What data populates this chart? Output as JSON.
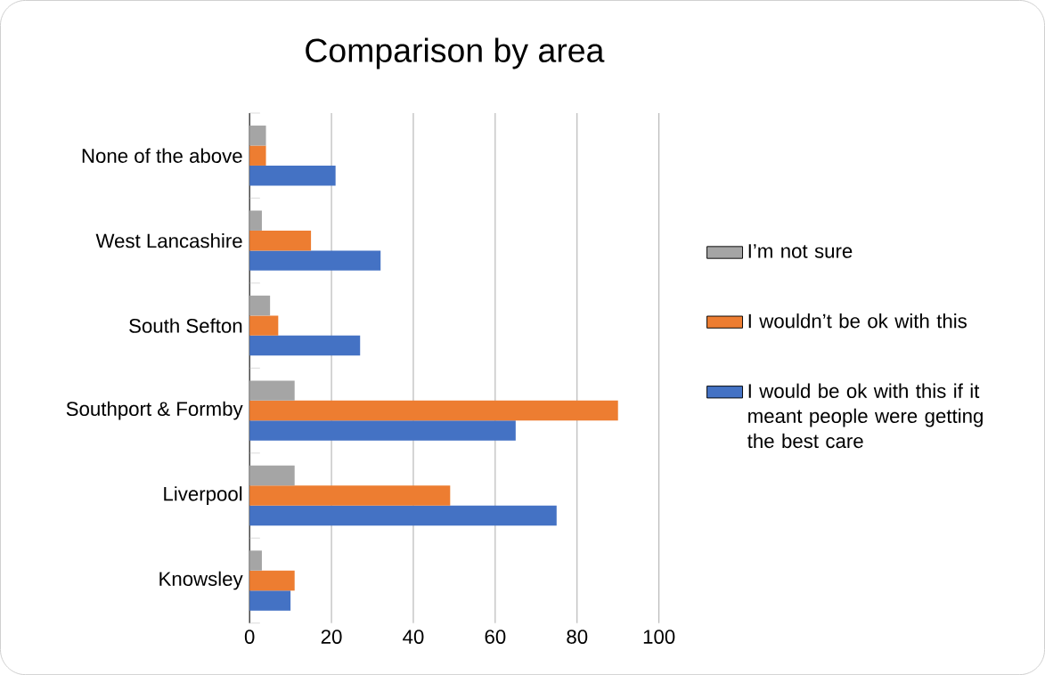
{
  "chart_data": {
    "type": "bar",
    "orientation": "horizontal",
    "title": "Comparison by area",
    "categories": [
      "None of the above",
      "West Lancashire",
      "South Sefton",
      "Southport & Formby",
      "Liverpool",
      "Knowsley"
    ],
    "series": [
      {
        "name": "I would be ok with this if it meant people were getting the best care",
        "color": "#4472c4",
        "values": [
          21,
          32,
          27,
          65,
          75,
          10
        ]
      },
      {
        "name": "I wouldn’t be ok with this",
        "color": "#ed7d31",
        "values": [
          4,
          15,
          7,
          90,
          49,
          11
        ]
      },
      {
        "name": "I’m not sure",
        "color": "#a5a5a5",
        "values": [
          4,
          3,
          5,
          11,
          11,
          3
        ]
      }
    ],
    "xlim": [
      0,
      100
    ],
    "xticks": [
      0,
      20,
      40,
      60,
      80,
      100
    ],
    "grid": "x",
    "legend": "right"
  }
}
